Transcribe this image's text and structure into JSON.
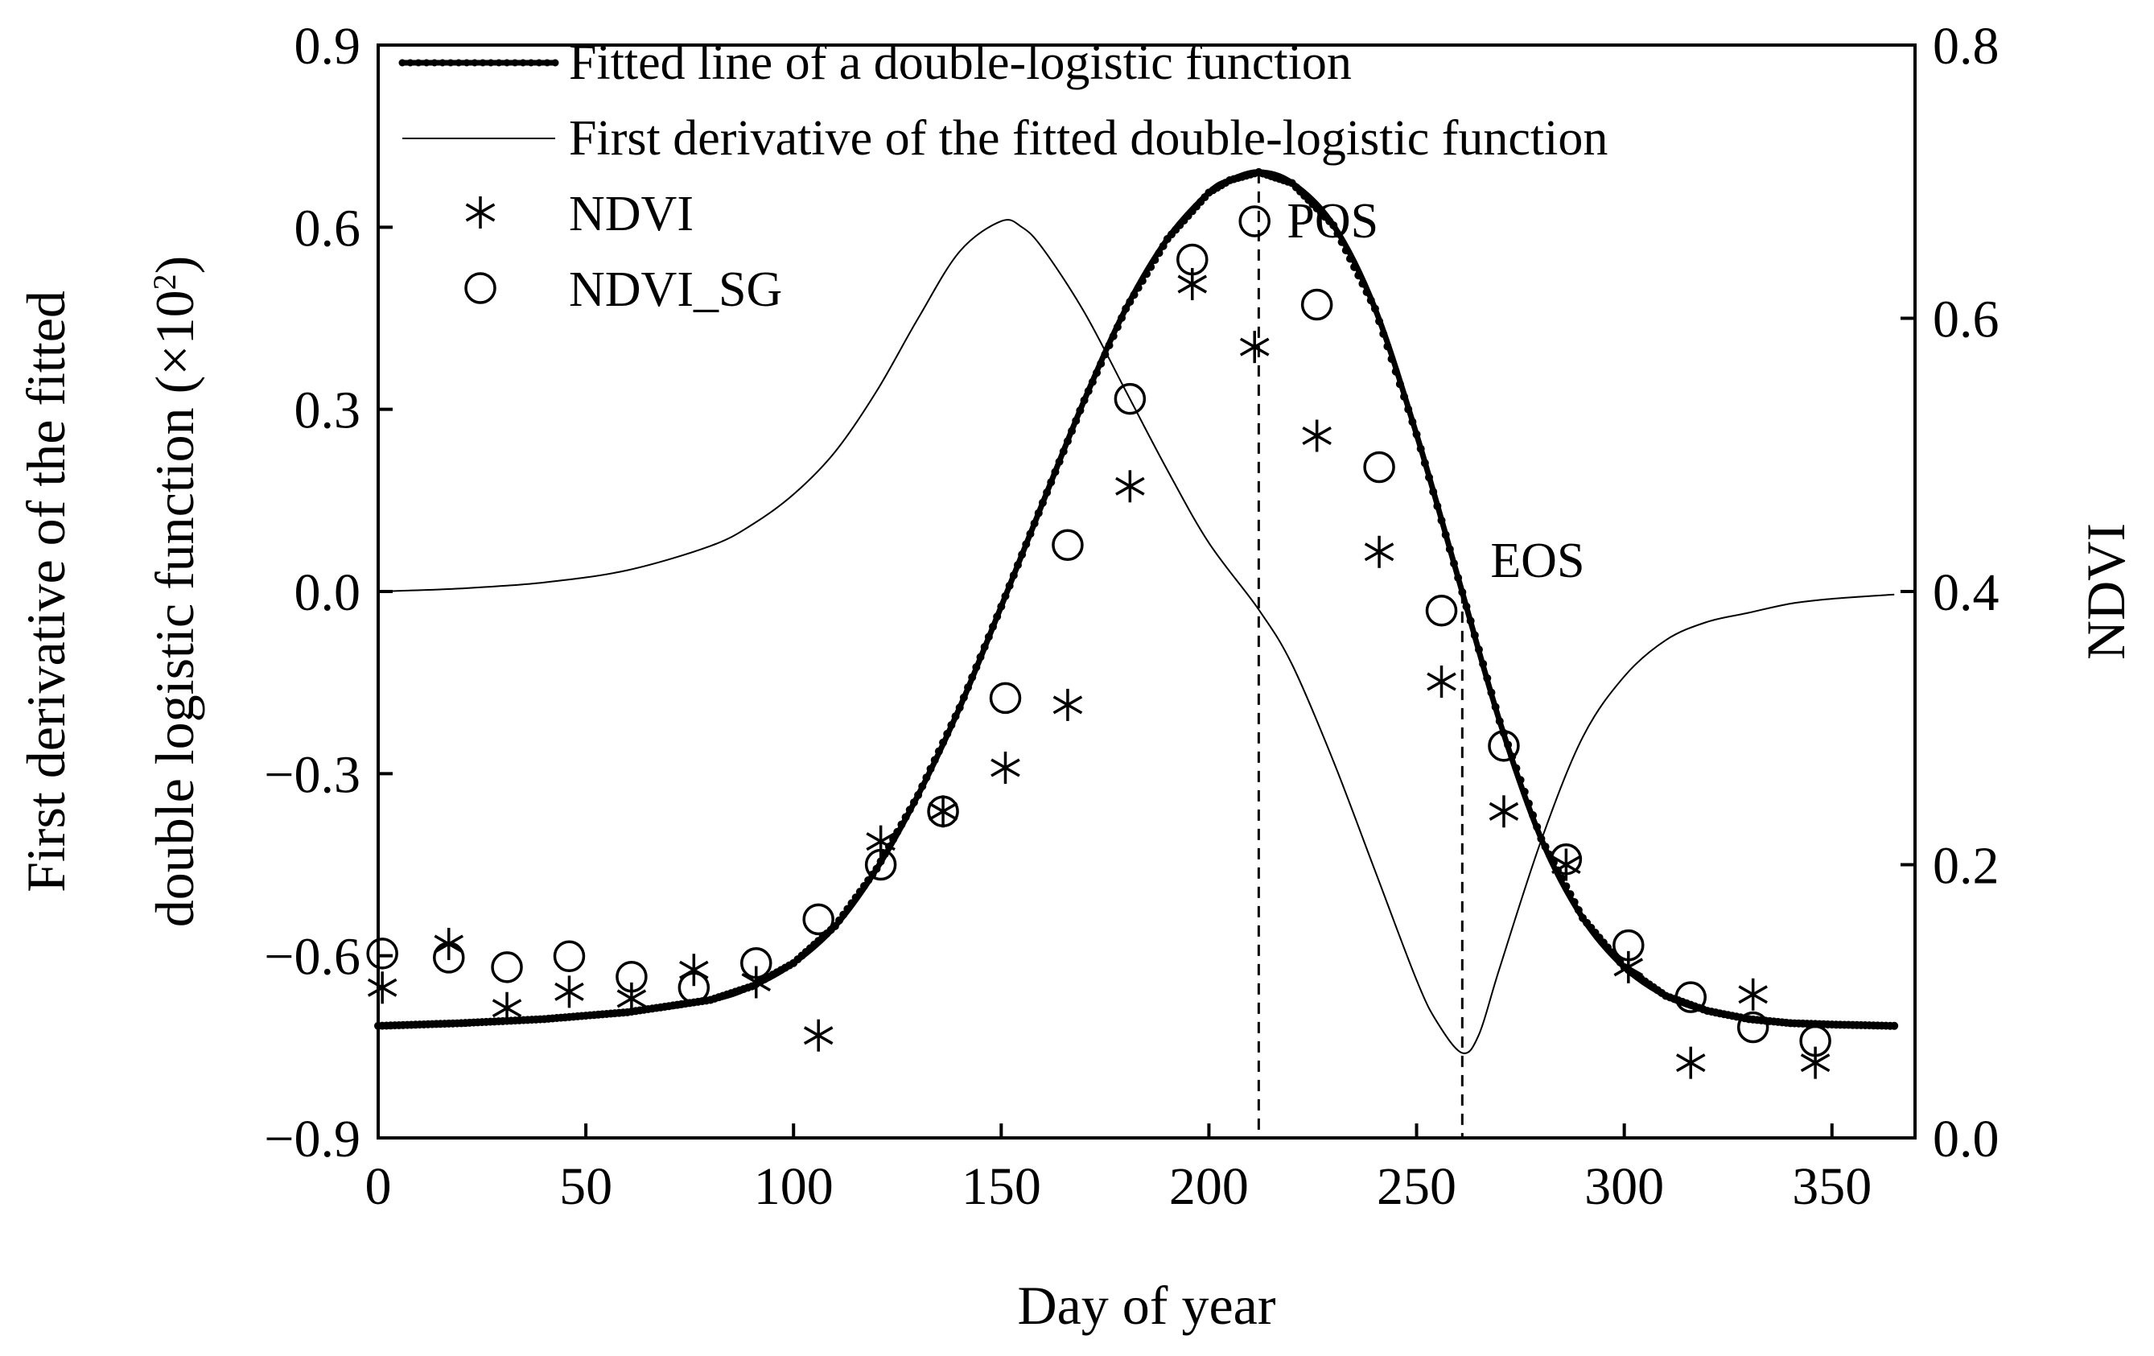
{
  "chart_data": {
    "type": "line",
    "xlabel": "Day of year",
    "ylabel_left_line1": "First derivative of the fitted",
    "ylabel_left_line2": "double logistic function (×10",
    "ylabel_left_sup": "2",
    "ylabel_left_close": ")",
    "ylabel_right": "NDVI",
    "xlim": [
      0,
      370
    ],
    "ylim_left": [
      -0.9,
      0.9
    ],
    "ylim_right": [
      0.0,
      0.8
    ],
    "x_ticks": [
      0,
      50,
      100,
      150,
      200,
      250,
      300,
      350
    ],
    "x_tick_labels": [
      "0",
      "50",
      "100",
      "150",
      "200",
      "250",
      "300",
      "350"
    ],
    "y_left_ticks": [
      0.9,
      0.6,
      0.3,
      0.0,
      -0.3,
      -0.6,
      -0.9
    ],
    "y_left_tick_labels": [
      "0.9",
      "0.6",
      "0.3",
      "0.0",
      "−0.3",
      "−0.6",
      "−0.9"
    ],
    "y_right_ticks": [
      0.8,
      0.6,
      0.4,
      0.2,
      0.0
    ],
    "y_right_tick_labels": [
      "0.8",
      "0.6",
      "0.4",
      "0.2",
      "0.0"
    ],
    "legend": [
      "Fitted line of a double-logistic function",
      "First derivative of the fitted double-logistic function",
      "NDVI",
      "NDVI_SG"
    ],
    "series": [
      {
        "name": "Fitted line of a double-logistic function",
        "axis": "right",
        "style": "thick-dotted-line",
        "x": [
          0,
          20,
          40,
          60,
          80,
          90,
          100,
          110,
          120,
          130,
          140,
          150,
          160,
          170,
          180,
          190,
          200,
          205,
          212,
          220,
          230,
          240,
          250,
          260,
          270,
          280,
          290,
          300,
          310,
          320,
          330,
          340,
          350,
          365
        ],
        "values": [
          0.082,
          0.084,
          0.087,
          0.092,
          0.101,
          0.111,
          0.128,
          0.155,
          0.197,
          0.251,
          0.315,
          0.389,
          0.465,
          0.54,
          0.607,
          0.658,
          0.692,
          0.701,
          0.707,
          0.699,
          0.668,
          0.607,
          0.515,
          0.41,
          0.305,
          0.219,
          0.161,
          0.125,
          0.104,
          0.093,
          0.087,
          0.084,
          0.083,
          0.082
        ]
      },
      {
        "name": "First derivative of the fitted double-logistic function",
        "axis": "left",
        "style": "thin-line",
        "x": [
          0,
          20,
          40,
          60,
          80,
          90,
          100,
          110,
          120,
          130,
          140,
          150,
          155,
          160,
          170,
          180,
          190,
          200,
          212,
          220,
          230,
          240,
          250,
          255,
          261,
          265,
          270,
          280,
          290,
          300,
          310,
          320,
          330,
          340,
          350,
          365
        ],
        "values": [
          0.0,
          0.005,
          0.015,
          0.035,
          0.075,
          0.11,
          0.16,
          0.23,
          0.33,
          0.45,
          0.56,
          0.61,
          0.6,
          0.565,
          0.46,
          0.33,
          0.2,
          0.08,
          -0.03,
          -0.12,
          -0.28,
          -0.46,
          -0.64,
          -0.71,
          -0.76,
          -0.73,
          -0.62,
          -0.41,
          -0.24,
          -0.14,
          -0.08,
          -0.05,
          -0.035,
          -0.02,
          -0.012,
          -0.005
        ]
      },
      {
        "name": "NDVI",
        "axis": "right",
        "style": "asterisk",
        "x": [
          1,
          17,
          31,
          46,
          61,
          76,
          91,
          106,
          121,
          136,
          151,
          166,
          181,
          196,
          211,
          226,
          241,
          256,
          271,
          286,
          301,
          316,
          331,
          346
        ],
        "values": [
          0.11,
          0.142,
          0.095,
          0.107,
          0.102,
          0.123,
          0.114,
          0.075,
          0.217,
          0.239,
          0.271,
          0.317,
          0.477,
          0.625,
          0.579,
          0.514,
          0.429,
          0.334,
          0.239,
          0.2,
          0.125,
          0.055,
          0.105,
          0.055
        ]
      },
      {
        "name": "NDVI_SG",
        "axis": "right",
        "style": "circle",
        "x": [
          1,
          17,
          31,
          46,
          61,
          76,
          91,
          106,
          121,
          136,
          151,
          166,
          181,
          196,
          211,
          226,
          241,
          256,
          271,
          286,
          301,
          316,
          331,
          346
        ],
        "values": [
          0.135,
          0.132,
          0.125,
          0.133,
          0.118,
          0.11,
          0.128,
          0.16,
          0.2,
          0.239,
          0.322,
          0.434,
          0.541,
          0.643,
          0.671,
          0.61,
          0.491,
          0.386,
          0.287,
          0.204,
          0.141,
          0.103,
          0.081,
          0.071
        ]
      }
    ],
    "annotations": [
      {
        "label": "POS",
        "x": 212
      },
      {
        "label": "EOS",
        "x": 261
      }
    ]
  }
}
